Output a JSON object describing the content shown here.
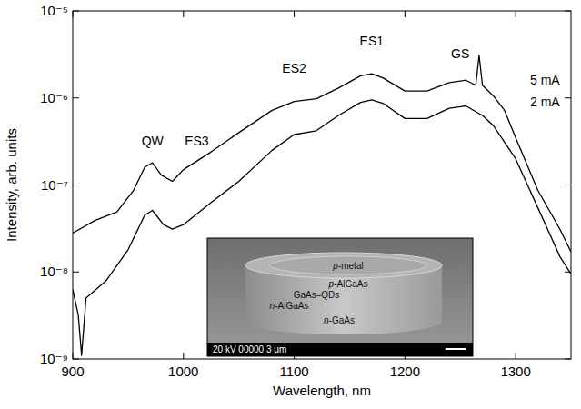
{
  "chart_data": {
    "type": "line",
    "x_label": "Wavelength, nm",
    "y_label": "Intensity, arb. units",
    "xlim": [
      900,
      1350
    ],
    "xticks": [
      900,
      1000,
      1100,
      1200,
      1300
    ],
    "ylim": [
      1e-09,
      1e-05
    ],
    "yticks": [
      {
        "value": 1e-09,
        "label": "10⁻⁹"
      },
      {
        "value": 1e-08,
        "label": "10⁻⁸"
      },
      {
        "value": 1e-07,
        "label": "10⁻⁷"
      },
      {
        "value": 1e-06,
        "label": "10⁻⁶"
      },
      {
        "value": 1e-05,
        "label": "10⁻⁵"
      }
    ],
    "log": "y",
    "series": [
      {
        "name": "5 mA",
        "color": "#000000",
        "x": [
          900,
          920,
          940,
          955,
          965,
          972,
          980,
          990,
          1000,
          1025,
          1050,
          1080,
          1100,
          1120,
          1140,
          1160,
          1170,
          1180,
          1200,
          1220,
          1240,
          1255,
          1264,
          1267,
          1270,
          1280,
          1290,
          1300,
          1320,
          1340,
          1350
        ],
        "values": [
          2.8e-08,
          3.9e-08,
          4.9e-08,
          8.7e-08,
          1.6e-07,
          1.8e-07,
          1.3e-07,
          1.1e-07,
          1.5e-07,
          2.4e-07,
          4e-07,
          7.2e-07,
          9.1e-07,
          9.8e-07,
          1.3e-06,
          1.8e-06,
          1.9e-06,
          1.7e-06,
          1.2e-06,
          1.2e-06,
          1.5e-06,
          1.6e-06,
          1.4e-06,
          3.1e-06,
          1.4e-06,
          1.05e-06,
          7.2e-07,
          3.5e-07,
          8.7e-08,
          3.1e-08,
          1.7e-08
        ]
      },
      {
        "name": "2 mA",
        "color": "#000000",
        "x": [
          900,
          905,
          908,
          912,
          930,
          950,
          965,
          972,
          982,
          990,
          1000,
          1025,
          1050,
          1080,
          1100,
          1120,
          1140,
          1160,
          1170,
          1180,
          1200,
          1220,
          1240,
          1255,
          1270,
          1280,
          1300,
          1320,
          1340,
          1350
        ],
        "values": [
          6.3e-09,
          3.2e-09,
          1.1e-09,
          5e-09,
          7.9e-09,
          1.8e-08,
          4.5e-08,
          5.1e-08,
          3.5e-08,
          3.1e-08,
          3.5e-08,
          6.3e-08,
          1.1e-07,
          2.5e-07,
          3.8e-07,
          4.2e-07,
          6.3e-07,
          8.9e-07,
          9.5e-07,
          8.7e-07,
          5.8e-07,
          5.8e-07,
          7.6e-07,
          8.1e-07,
          6.3e-07,
          4.8e-07,
          2e-07,
          5.5e-08,
          1.5e-08,
          9.5e-09
        ]
      }
    ],
    "annotations": [
      {
        "text": "QW",
        "x": 972,
        "y": 3.2e-07
      },
      {
        "text": "ES3",
        "x": 1012,
        "y": 3.2e-07
      },
      {
        "text": "ES2",
        "x": 1100,
        "y": 2.2e-06
      },
      {
        "text": "ES1",
        "x": 1170,
        "y": 4.5e-06
      },
      {
        "text": "GS",
        "x": 1250,
        "y": 3.2e-06
      }
    ],
    "inset": {
      "labels": [
        "p-metal",
        "p-AlGaAs",
        "GaAs–QDs",
        "n-AlGaAs",
        "n-GaAs"
      ],
      "caption": "20 kV 00000 3 μm"
    }
  }
}
